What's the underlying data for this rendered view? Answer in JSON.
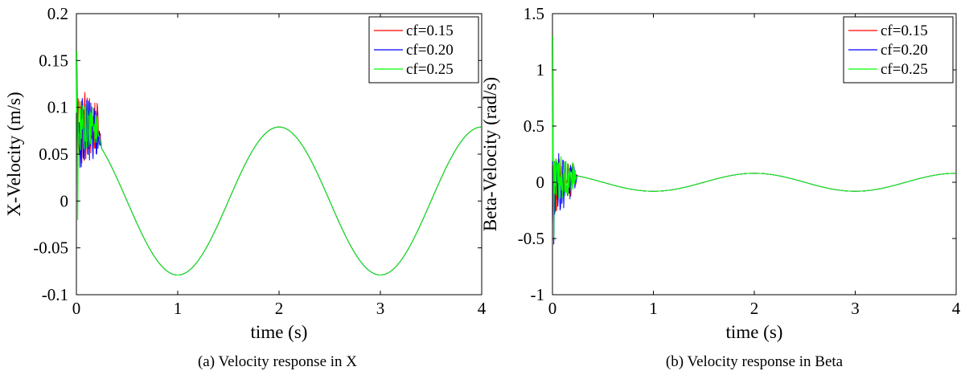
{
  "captions": [
    "(a) Velocity response in X",
    "(b) Velocity response in Beta"
  ],
  "series_colors": {
    "cf=0.15": "#ff0000",
    "cf=0.20": "#0000ff",
    "cf=0.25": "#00ff00"
  },
  "chart_data": [
    {
      "type": "line",
      "caption": "(a) Velocity response in X",
      "xlabel": "time (s)",
      "ylabel": "X-Velocity (m/s)",
      "xlim": [
        0,
        4
      ],
      "ylim": [
        -0.1,
        0.2
      ],
      "xticks": [
        0,
        1,
        2,
        3,
        4
      ],
      "xtick_labels": [
        "0",
        "1",
        "2",
        "3",
        "4"
      ],
      "yticks": [
        -0.1,
        -0.05,
        0,
        0.05,
        0.1,
        0.15,
        0.2
      ],
      "ytick_labels": [
        "-0.1",
        "-0.05",
        "0",
        "0.05",
        "0.1",
        "0.15",
        "0.2"
      ],
      "legend": "top-right",
      "grid": false,
      "steady_state": {
        "form": "amplitude*sin(2*pi*frequency*(t - phase_shift))",
        "amplitude": 0.079,
        "frequency": 0.5,
        "phase_shift": 1.5,
        "offset": 0,
        "settles_at": 0.25
      },
      "series": [
        {
          "name": "cf=0.15",
          "color": "#ff0000",
          "transient_range": [
            0.03,
            0.13
          ],
          "transient_peak": 0.14,
          "transient_min": 0.04
        },
        {
          "name": "cf=0.20",
          "color": "#0000ff",
          "transient_range": [
            0.03,
            0.12
          ],
          "transient_peak": 0.155,
          "transient_min": 0.03
        },
        {
          "name": "cf=0.25",
          "color": "#00ff00",
          "transient_range": [
            0.05,
            0.11
          ],
          "transient_peak": 0.16,
          "transient_min": -0.02
        }
      ]
    },
    {
      "type": "line",
      "caption": "(b) Velocity response in Beta",
      "xlabel": "time (s)",
      "ylabel": "Beta-Velocity (rad/s)",
      "xlim": [
        0,
        4
      ],
      "ylim": [
        -1,
        1.5
      ],
      "xticks": [
        0,
        1,
        2,
        3,
        4
      ],
      "xtick_labels": [
        "0",
        "1",
        "2",
        "3",
        "4"
      ],
      "yticks": [
        -1,
        -0.5,
        0,
        0.5,
        1,
        1.5
      ],
      "ytick_labels": [
        "-1",
        "-0.5",
        "0",
        "0.5",
        "1",
        "1.5"
      ],
      "legend": "top-right",
      "grid": false,
      "steady_state": {
        "form": "amplitude*sin(2*pi*frequency*(t - phase_shift))",
        "amplitude": 0.08,
        "frequency": 0.5,
        "phase_shift": 1.5,
        "offset": 0,
        "settles_at": 0.25
      },
      "series": [
        {
          "name": "cf=0.15",
          "color": "#ff0000",
          "transient_range": [
            -0.3,
            0.3
          ],
          "transient_peak": 1.1,
          "transient_min": -0.45
        },
        {
          "name": "cf=0.20",
          "color": "#0000ff",
          "transient_range": [
            -0.3,
            0.3
          ],
          "transient_peak": 1.0,
          "transient_min": -0.55
        },
        {
          "name": "cf=0.25",
          "color": "#00ff00",
          "transient_range": [
            -0.2,
            0.3
          ],
          "transient_peak": 1.3,
          "transient_min": -0.5
        }
      ]
    }
  ]
}
